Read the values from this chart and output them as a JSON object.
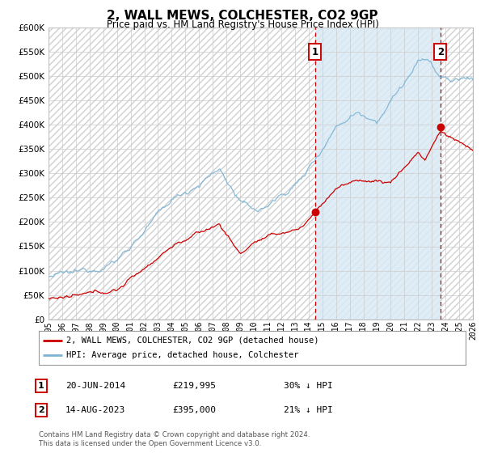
{
  "title": "2, WALL MEWS, COLCHESTER, CO2 9GP",
  "subtitle": "Price paid vs. HM Land Registry's House Price Index (HPI)",
  "ylim": [
    0,
    600000
  ],
  "yticks": [
    0,
    50000,
    100000,
    150000,
    200000,
    250000,
    300000,
    350000,
    400000,
    450000,
    500000,
    550000,
    600000
  ],
  "hpi_color": "#7ab3d4",
  "price_color": "#cc0000",
  "bg_color": "#ffffff",
  "shaded_color": "#daeaf5",
  "grid_color": "#cccccc",
  "purchase1_year": 2014.47,
  "purchase1_price": 219995,
  "purchase1_label": "20-JUN-2014",
  "purchase1_pct": "30% ↓ HPI",
  "purchase2_year": 2023.62,
  "purchase2_price": 395000,
  "purchase2_label": "14-AUG-2023",
  "purchase2_pct": "21% ↓ HPI",
  "legend_entry1": "2, WALL MEWS, COLCHESTER, CO2 9GP (detached house)",
  "legend_entry2": "HPI: Average price, detached house, Colchester",
  "footnote1": "Contains HM Land Registry data © Crown copyright and database right 2024.",
  "footnote2": "This data is licensed under the Open Government Licence v3.0.",
  "xmin": 1995,
  "xmax": 2026
}
